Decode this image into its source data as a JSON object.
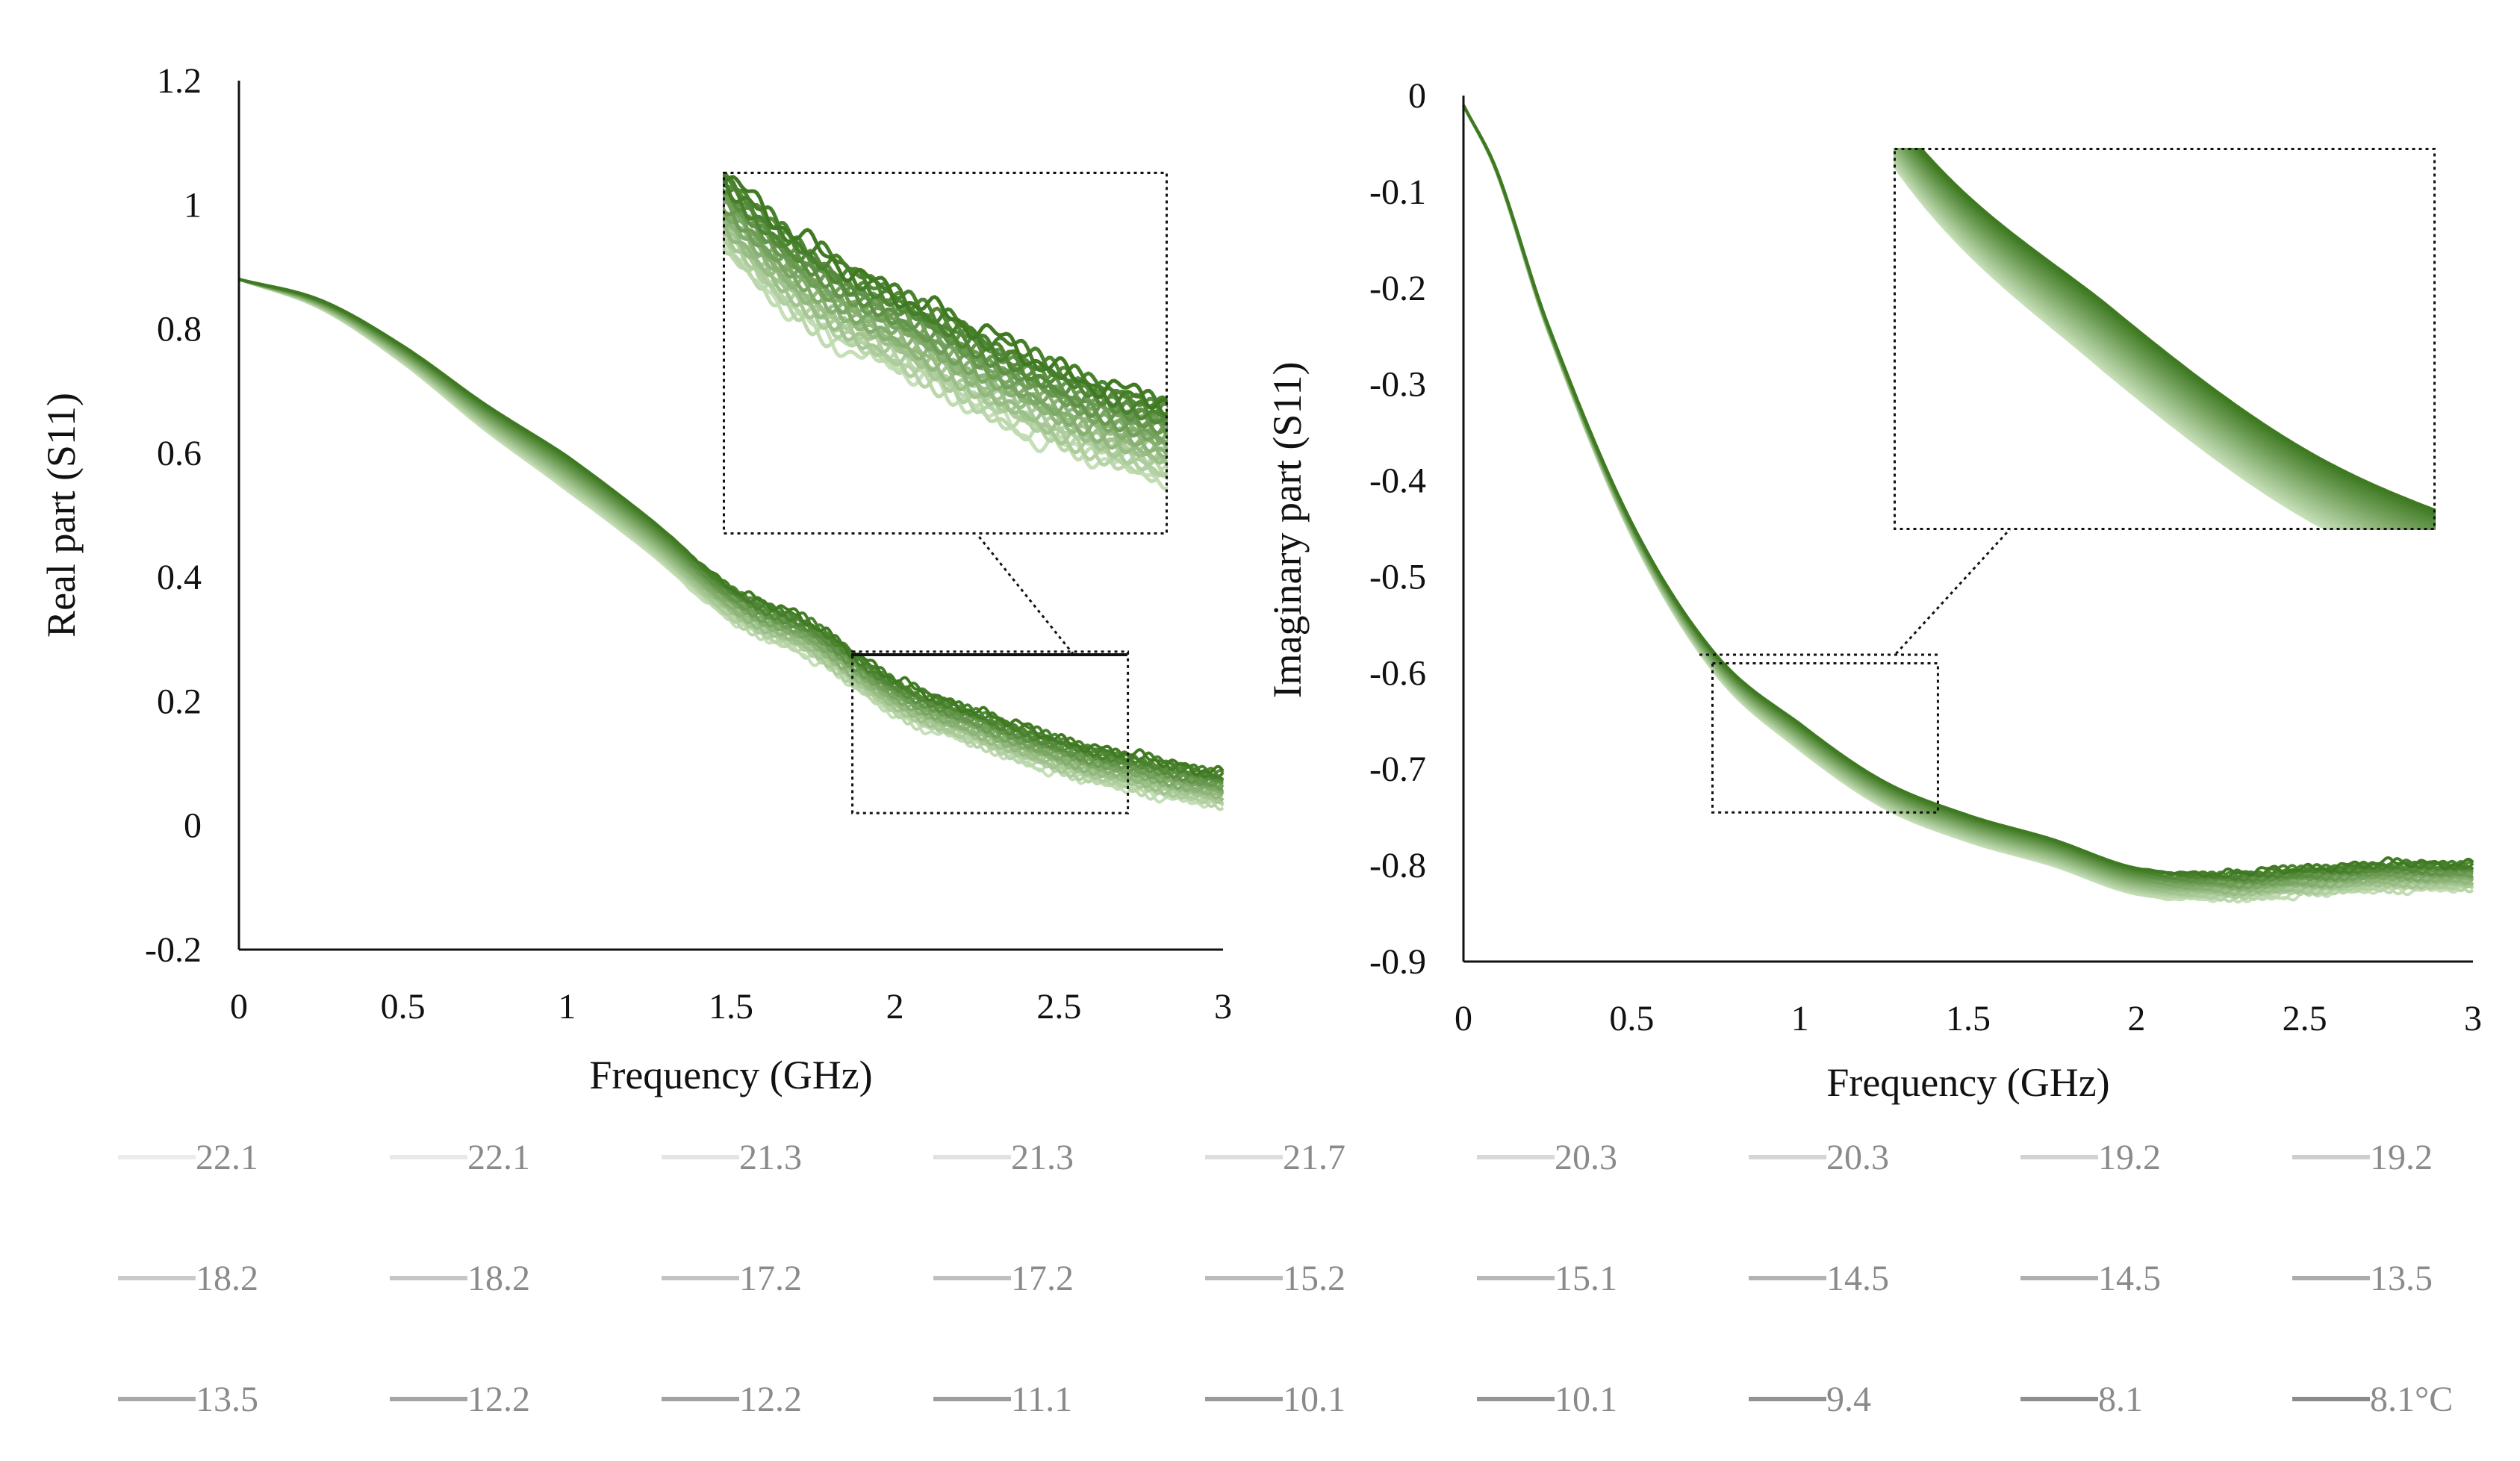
{
  "chart_data": [
    {
      "type": "line",
      "xlabel": "Frequency (GHz)",
      "ylabel": "Real part (S11)",
      "xlim": [
        0,
        3
      ],
      "ylim": [
        -0.2,
        1.2
      ],
      "xticks": [
        "0",
        "0.5",
        "1",
        "1.5",
        "2",
        "2.5",
        "3"
      ],
      "yticks": [
        "-0.2",
        "0",
        "0.2",
        "0.4",
        "0.6",
        "0.8",
        "1",
        "1.2"
      ],
      "grid": false,
      "inset": {
        "zoom_region_x": [
          1.87,
          2.71
        ],
        "zoom_region_y": [
          0.02,
          0.28
        ]
      },
      "curve": {
        "x": [
          0,
          0.25,
          0.5,
          0.75,
          1.0,
          1.25,
          1.5,
          1.75,
          2.0,
          2.25,
          2.5,
          2.75,
          3.0
        ],
        "y": [
          0.88,
          0.84,
          0.76,
          0.66,
          0.57,
          0.47,
          0.36,
          0.3,
          0.21,
          0.16,
          0.115,
          0.085,
          0.06
        ],
        "spread_low_temp": 0.025,
        "spread_high_temp": -0.03
      }
    },
    {
      "type": "line",
      "xlabel": "Frequency (GHz)",
      "ylabel": "Imaginary part (S11)",
      "xlim": [
        0,
        3
      ],
      "ylim": [
        -0.9,
        0
      ],
      "xticks": [
        "0",
        "0.5",
        "1",
        "1.5",
        "2",
        "2.5",
        "3"
      ],
      "yticks": [
        "0",
        "-0.1",
        "-0.2",
        "-0.3",
        "-0.4",
        "-0.5",
        "-0.6",
        "-0.7",
        "-0.8",
        "-0.9"
      ],
      "grid": false,
      "inset": {
        "zoom_region_x": [
          0.74,
          1.41
        ],
        "zoom_region_y": [
          -0.745,
          -0.59
        ]
      },
      "curve": {
        "x": [
          0,
          0.1,
          0.25,
          0.5,
          0.75,
          1.0,
          1.25,
          1.5,
          1.75,
          2.0,
          2.25,
          2.5,
          2.75,
          3.0
        ],
        "y": [
          -0.01,
          -0.08,
          -0.24,
          -0.45,
          -0.59,
          -0.665,
          -0.725,
          -0.76,
          -0.785,
          -0.815,
          -0.82,
          -0.815,
          -0.81,
          -0.81
        ],
        "spread_low_temp": 0.012,
        "spread_high_temp": -0.015
      }
    }
  ],
  "legend": {
    "unit": "°C",
    "labels": [
      "22.1",
      "22.1",
      "21.3",
      "21.3",
      "21.7",
      "20.3",
      "20.3",
      "19.2",
      "19.2",
      "18.2",
      "18.2",
      "17.2",
      "17.2",
      "15.2",
      "15.1",
      "14.5",
      "14.5",
      "13.5",
      "13.5",
      "12.2",
      "12.2",
      "11.1",
      "10.1",
      "10.1",
      "9.4",
      "8.1",
      "8.1°C"
    ]
  },
  "colors": {
    "series_light": "#c6dfb8",
    "series_dark": "#3f7a22",
    "legend_light": "#ececec",
    "legend_dark": "#8a8a8a"
  }
}
